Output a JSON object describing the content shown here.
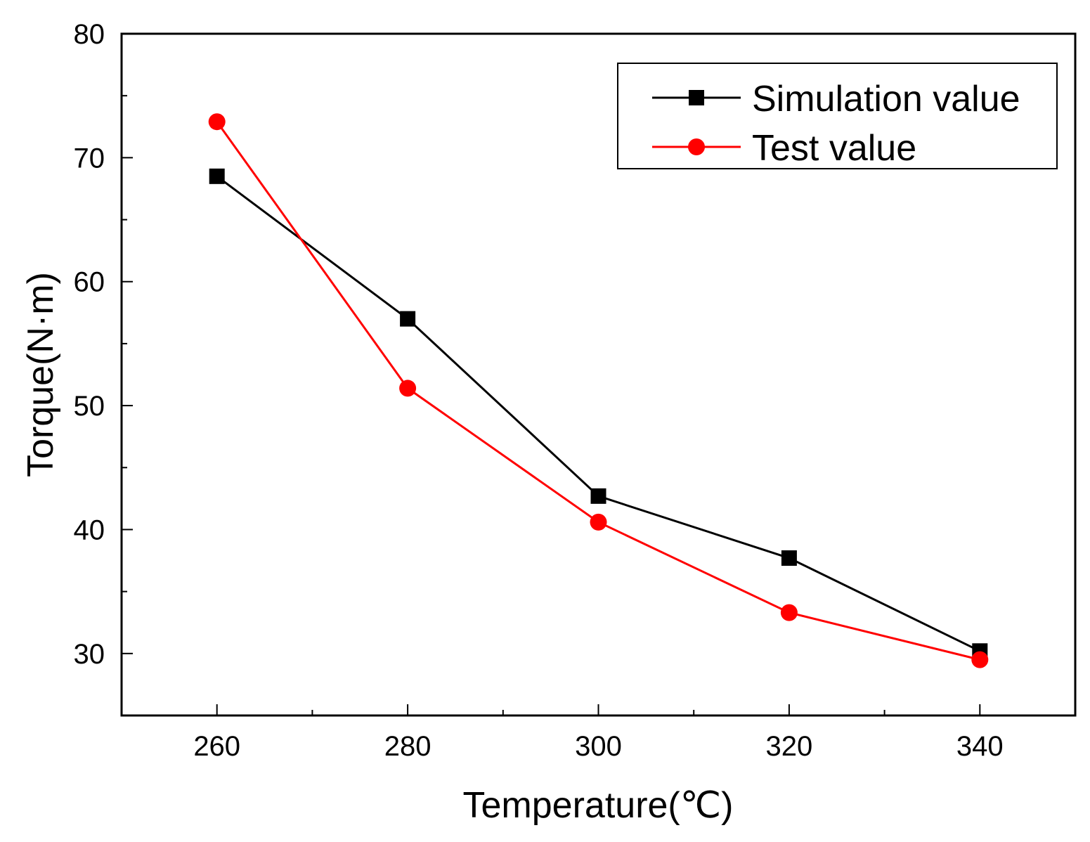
{
  "chart_data": {
    "type": "line",
    "title": "",
    "xlabel": "Temperature(℃)",
    "ylabel": "Torque(N·m)",
    "xlim": [
      250,
      350
    ],
    "ylim": [
      25,
      80
    ],
    "x_ticks": [
      260,
      280,
      300,
      320,
      340
    ],
    "x_tick_labels": [
      "260",
      "280",
      "300",
      "320",
      "340"
    ],
    "x_minor_ticks": [
      270,
      290,
      310,
      330
    ],
    "y_ticks": [
      30,
      40,
      50,
      60,
      70,
      80
    ],
    "y_tick_labels": [
      "30",
      "40",
      "50",
      "60",
      "70",
      "80"
    ],
    "y_minor_ticks": [
      35,
      45,
      55,
      65,
      75
    ],
    "grid": false,
    "legend_position": "top-right",
    "x": [
      260,
      280,
      300,
      320,
      340
    ],
    "series": [
      {
        "name": "Simulation value",
        "marker": "square",
        "color": "#000000",
        "values": [
          68.5,
          57.0,
          42.7,
          37.7,
          30.2
        ]
      },
      {
        "name": "Test value",
        "marker": "circle",
        "color": "#ff0000",
        "values": [
          72.9,
          51.4,
          40.6,
          33.3,
          29.5
        ]
      }
    ]
  }
}
